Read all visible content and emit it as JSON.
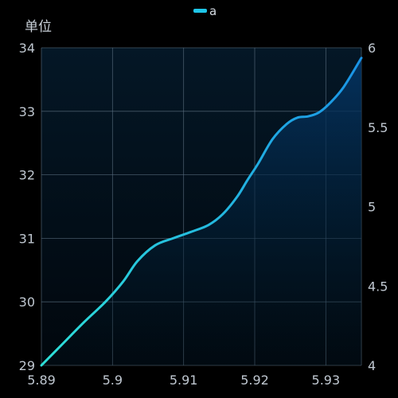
{
  "chart_data": {
    "type": "area",
    "title": "",
    "legend": {
      "position": "top-center",
      "entries": [
        "a"
      ]
    },
    "y_unit_label": "单位",
    "grid": true,
    "x_axis": {
      "range": [
        5.89,
        5.935
      ],
      "ticks": [
        5.89,
        5.9,
        5.91,
        5.92,
        5.93
      ],
      "tick_labels": [
        "5.89",
        "5.9",
        "5.91",
        "5.92",
        "5.93"
      ]
    },
    "y_axis_left": {
      "range": [
        29,
        34
      ],
      "ticks": [
        29,
        30,
        31,
        32,
        33,
        34
      ],
      "tick_labels": [
        "29",
        "30",
        "31",
        "32",
        "33",
        "34"
      ]
    },
    "y_axis_right": {
      "range": [
        4,
        6
      ],
      "ticks": [
        4,
        4.5,
        5,
        5.5,
        6
      ],
      "tick_labels": [
        "4",
        "4.5",
        "5",
        "5.5",
        "6"
      ]
    },
    "series": [
      {
        "name": "a",
        "color": "#1fc6e8",
        "axis": "left",
        "x": [
          5.89,
          5.893,
          5.896,
          5.899,
          5.9015,
          5.9035,
          5.906,
          5.9085,
          5.911,
          5.9135,
          5.9155,
          5.9175,
          5.919,
          5.9205,
          5.9225,
          5.9245,
          5.926,
          5.9275,
          5.929,
          5.9305,
          5.9325,
          5.935
        ],
        "y": [
          29.0,
          29.34,
          29.68,
          30.0,
          30.32,
          30.64,
          30.89,
          31.0,
          31.1,
          31.21,
          31.38,
          31.65,
          31.92,
          32.18,
          32.56,
          32.8,
          32.9,
          32.92,
          32.98,
          33.12,
          33.38,
          33.84
        ]
      }
    ],
    "colors": {
      "background": "#000000",
      "plot_top": "#032a4f",
      "plot_bottom": "#020a12",
      "line_start": "#2ee0d8",
      "line_end": "#1a93e6",
      "grid": "#5b6f80"
    }
  }
}
